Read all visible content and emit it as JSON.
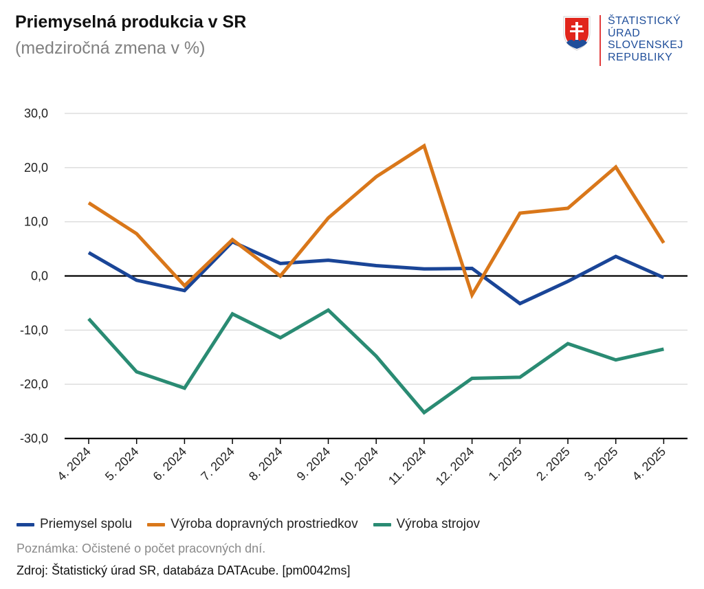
{
  "header": {
    "title": "Priemyselná produkcia v SR",
    "subtitle": "(medziročná zmena v %)"
  },
  "logo": {
    "lines": [
      "ŠTATISTICKÝ",
      "ÚRAD",
      "SLOVENSKEJ",
      "REPUBLIKY"
    ]
  },
  "colors": {
    "series1": "#1a4597",
    "series2": "#d9771a",
    "series3": "#2a8b73",
    "grid": "#dddddd",
    "zero_line": "#000000"
  },
  "chart_data": {
    "type": "line",
    "title": "Priemyselná produkcia v SR",
    "subtitle": "(medziročná zmena v %)",
    "categories": [
      "4. 2024",
      "5. 2024",
      "6. 2024",
      "7. 2024",
      "8. 2024",
      "9. 2024",
      "10. 2024",
      "11. 2024",
      "12. 2024",
      "1. 2025",
      "2. 2025",
      "3. 2025",
      "4. 2025"
    ],
    "y_ticks": [
      "30,0",
      "20,0",
      "10,0",
      "0,0",
      "-10,0",
      "-20,0",
      "-30,0"
    ],
    "ylim": [
      -30,
      30
    ],
    "grid": true,
    "legend_position": "bottom",
    "series": [
      {
        "name": "Priemysel spolu",
        "values": [
          4.3,
          -0.8,
          -2.7,
          6.3,
          2.3,
          2.9,
          1.9,
          1.3,
          1.4,
          -5.1,
          -1.0,
          3.6,
          -0.3
        ]
      },
      {
        "name": "Výroba dopravných prostriedkov",
        "values": [
          13.5,
          7.8,
          -1.8,
          6.7,
          0.0,
          10.7,
          18.3,
          24.0,
          -3.5,
          11.6,
          12.5,
          20.1,
          6.1
        ]
      },
      {
        "name": "Výroba strojov",
        "values": [
          -7.9,
          -17.7,
          -20.7,
          -7.0,
          -11.4,
          -6.3,
          -14.8,
          -25.2,
          -18.9,
          -18.7,
          -12.5,
          -15.5,
          -13.5
        ]
      }
    ]
  },
  "footer": {
    "note": "Poznámka: Očistené o počet pracovných dní.",
    "source": "Zdroj: Štatistický úrad SR, databáza DATAcube. [pm0042ms]"
  }
}
